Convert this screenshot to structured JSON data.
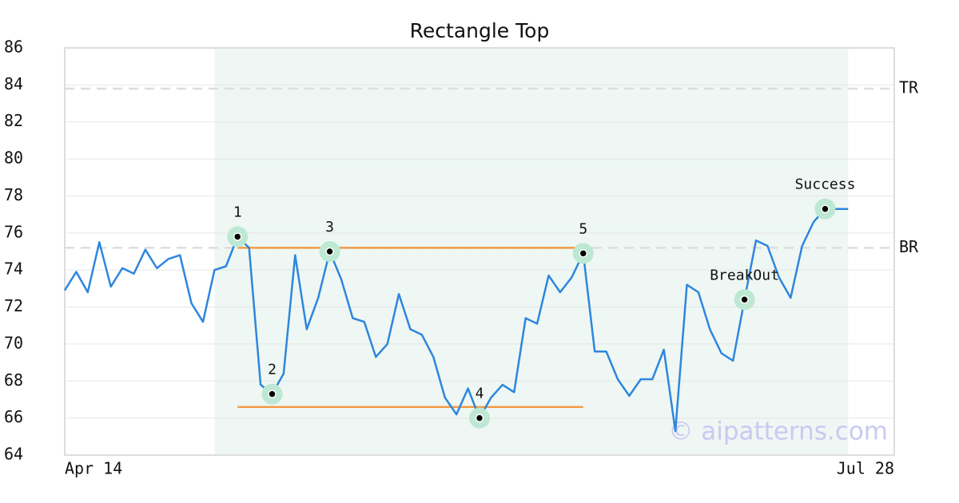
{
  "chart_data": {
    "type": "line",
    "title": "Rectangle Top",
    "categories": [
      "Apr 14",
      null,
      null,
      null,
      null,
      null,
      null,
      null,
      null,
      null,
      null,
      null,
      null,
      null,
      null,
      null,
      null,
      null,
      null,
      null,
      null,
      null,
      null,
      null,
      null,
      null,
      null,
      null,
      null,
      null,
      null,
      null,
      null,
      null,
      null,
      null,
      null,
      null,
      null,
      null,
      null,
      null,
      null,
      null,
      null,
      null,
      null,
      null,
      null,
      null,
      null,
      null,
      null,
      null,
      null,
      null,
      null,
      null,
      null,
      null,
      null,
      null,
      null,
      null,
      null,
      null,
      null,
      null,
      null,
      null,
      null,
      null,
      "Jul 28"
    ],
    "values": [
      72.9,
      73.9,
      72.8,
      75.5,
      73.1,
      74.1,
      73.8,
      75.1,
      74.1,
      74.6,
      74.8,
      72.2,
      71.2,
      74.0,
      74.2,
      75.8,
      75.2,
      67.8,
      67.3,
      68.4,
      74.8,
      70.8,
      72.5,
      75.0,
      73.5,
      71.4,
      71.2,
      69.3,
      70.0,
      72.7,
      70.8,
      70.5,
      69.3,
      67.1,
      66.2,
      67.6,
      66.0,
      67.1,
      67.8,
      67.4,
      71.4,
      71.1,
      73.7,
      72.8,
      73.6,
      74.9,
      69.6,
      69.6,
      68.1,
      67.2,
      68.1,
      68.1,
      69.7,
      65.3,
      73.2,
      72.8,
      70.8,
      69.5,
      69.1,
      72.4,
      75.6,
      75.3,
      73.6,
      72.5,
      75.3,
      76.6,
      77.3,
      77.3,
      77.3,
      null,
      null,
      null,
      null
    ],
    "color": "#2e86de",
    "ylim": [
      64,
      86
    ],
    "yticks": [
      64,
      66,
      68,
      70,
      72,
      74,
      76,
      78,
      80,
      82,
      84,
      86
    ],
    "grid": true,
    "shaded": {
      "start": 13,
      "end": 68,
      "color": "#eef7f3"
    },
    "reference_lines": [
      {
        "label": "TR",
        "value": 83.8
      },
      {
        "label": "BR",
        "value": 75.2
      }
    ],
    "range_lines": {
      "color": "#f39c45",
      "start": 15,
      "end": 45,
      "values": [
        75.2,
        66.6
      ]
    },
    "annotations": [
      {
        "text": "1",
        "index": 15
      },
      {
        "text": "2",
        "index": 18
      },
      {
        "text": "3",
        "index": 23
      },
      {
        "text": "4",
        "index": 36
      },
      {
        "text": "5",
        "index": 45
      },
      {
        "text": "BreakOut",
        "index": 59
      },
      {
        "text": "Success",
        "index": 66
      }
    ],
    "watermark": "© aipatterns.com"
  }
}
